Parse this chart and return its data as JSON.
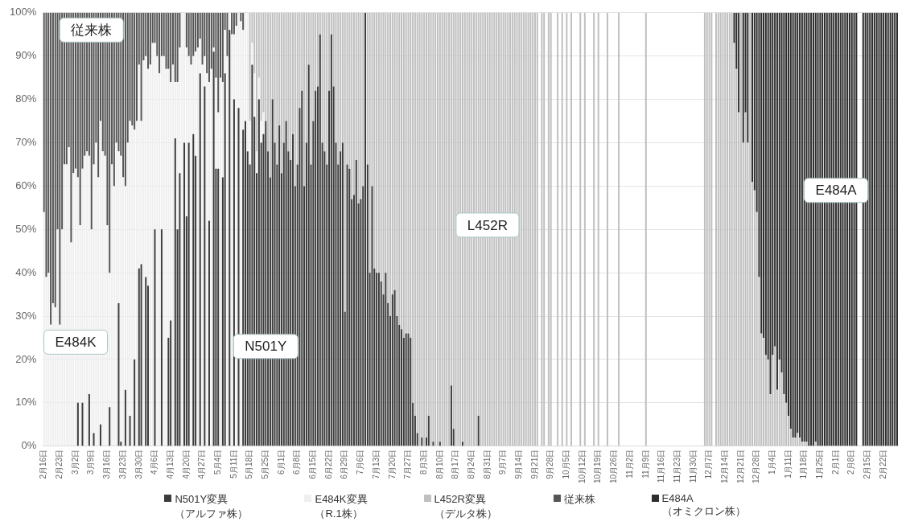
{
  "chart_data": {
    "type": "bar",
    "stacked": true,
    "categories": [
      "2月16日",
      null,
      null,
      null,
      null,
      null,
      null,
      "2月23日",
      null,
      null,
      null,
      null,
      null,
      null,
      "3月2日",
      null,
      null,
      null,
      null,
      null,
      null,
      "3月9日",
      null,
      null,
      null,
      null,
      null,
      null,
      "3月16日",
      null,
      null,
      null,
      null,
      null,
      null,
      "3月23日",
      null,
      null,
      null,
      null,
      null,
      null,
      "3月30日",
      null,
      null,
      null,
      null,
      null,
      null,
      "4月6日",
      null,
      null,
      null,
      null,
      null,
      null,
      "4月13日",
      null,
      null,
      null,
      null,
      null,
      null,
      "4月20日",
      null,
      null,
      null,
      null,
      null,
      null,
      "4月27日",
      null,
      null,
      null,
      null,
      null,
      null,
      "5月4日",
      null,
      null,
      null,
      null,
      null,
      null,
      "5月11日",
      null,
      null,
      null,
      null,
      null,
      null,
      "5月18日",
      null,
      null,
      null,
      null,
      null,
      null,
      "5月25日",
      null,
      null,
      null,
      null,
      null,
      null,
      "6月1日",
      null,
      null,
      null,
      null,
      null,
      null,
      "6月8日",
      null,
      null,
      null,
      null,
      null,
      null,
      "6月15日",
      null,
      null,
      null,
      null,
      null,
      null,
      "6月22日",
      null,
      null,
      null,
      null,
      null,
      null,
      "6月29日",
      null,
      null,
      null,
      null,
      null,
      null,
      "7月6日",
      null,
      null,
      null,
      null,
      null,
      null,
      "7月13日",
      null,
      null,
      null,
      null,
      null,
      null,
      "7月20日",
      null,
      null,
      null,
      null,
      null,
      null,
      "7月27日",
      null,
      null,
      null,
      null,
      null,
      null,
      "8月3日",
      null,
      null,
      null,
      null,
      null,
      null,
      "8月10日",
      null,
      null,
      null,
      null,
      null,
      null,
      "8月17日",
      null,
      null,
      null,
      null,
      null,
      null,
      "8月24日",
      null,
      null,
      null,
      null,
      null,
      null,
      "8月31日",
      null,
      null,
      null,
      null,
      null,
      null,
      "9月7日",
      null,
      null,
      null,
      null,
      null,
      null,
      "9月14日",
      null,
      null,
      null,
      null,
      null,
      null,
      "9月21日",
      null,
      null,
      null,
      null,
      null,
      null,
      "9月28日",
      null,
      null,
      null,
      null,
      null,
      null,
      "10月5日",
      null,
      null,
      null,
      null,
      null,
      null,
      "10月12日",
      null,
      null,
      null,
      null,
      null,
      null,
      "10月19日",
      null,
      null,
      null,
      null,
      null,
      null,
      "10月26日",
      null,
      null,
      null,
      null,
      null,
      null,
      "11月2日",
      null,
      null,
      null,
      null,
      null,
      null,
      "11月9日",
      null,
      null,
      null,
      null,
      null,
      null,
      "11月16日",
      null,
      null,
      null,
      null,
      null,
      null,
      "11月23日",
      null,
      null,
      null,
      null,
      null,
      null,
      "11月30日",
      null,
      null,
      null,
      null,
      null,
      null,
      "12月7日",
      null,
      null,
      null,
      null,
      null,
      null,
      "12月14日",
      null,
      null,
      null,
      null,
      null,
      null,
      "12月21日",
      null,
      null,
      null,
      null,
      null,
      null,
      "12月28日",
      null,
      null,
      null,
      null,
      null,
      null,
      "1月4日",
      null,
      null,
      null,
      null,
      null,
      null,
      "1月11日",
      null,
      null,
      null,
      null,
      null,
      null,
      "1月18日",
      null,
      null,
      null,
      null,
      null,
      null,
      "1月25日",
      null,
      null,
      null,
      null,
      null,
      null,
      "2月1日",
      null,
      null,
      null,
      null,
      null,
      null,
      "2月8日",
      null,
      null,
      null,
      null,
      null,
      null,
      "2月15日",
      null,
      null,
      null,
      null,
      null,
      null,
      "2月22日",
      null,
      null,
      null,
      null,
      null,
      null
    ],
    "series": [
      {
        "name": "N501Y変異（アルファ株）",
        "color": "#3c3c3c",
        "values": [
          0,
          0,
          0,
          0,
          0,
          0,
          0,
          0,
          0,
          0,
          0,
          0,
          0,
          0,
          0,
          10,
          0,
          10,
          0,
          0,
          12,
          0,
          3,
          0,
          0,
          5,
          0,
          0,
          0,
          9,
          0,
          0,
          0,
          33,
          1,
          0,
          13,
          0,
          7,
          0,
          20,
          0,
          41,
          42,
          0,
          39,
          37,
          0,
          0,
          50,
          0,
          0,
          50,
          0,
          0,
          25,
          29,
          0,
          71,
          50,
          63,
          0,
          70,
          53,
          70,
          0,
          72,
          67,
          0,
          86,
          0,
          83,
          0,
          52,
          0,
          91,
          64,
          64,
          0,
          62,
          86,
          0,
          96,
          0,
          80,
          0,
          78,
          0,
          73,
          75,
          68,
          65,
          88,
          76,
          63,
          80,
          70,
          72,
          75,
          68,
          62,
          80,
          70,
          65,
          74,
          63,
          70,
          75,
          68,
          66,
          72,
          60,
          65,
          78,
          82,
          60,
          70,
          88,
          65,
          75,
          82,
          83,
          95,
          70,
          68,
          65,
          82,
          95,
          83,
          70,
          65,
          68,
          70,
          31,
          65,
          64,
          57,
          58,
          66,
          56,
          57,
          60,
          100,
          65,
          40,
          60,
          41,
          40,
          40,
          38,
          35,
          40,
          33,
          30,
          35,
          36,
          30,
          28,
          27,
          25,
          26,
          26,
          25,
          10,
          7,
          3,
          0,
          2,
          0,
          2,
          7,
          0,
          1,
          0,
          0,
          1,
          0,
          0,
          0,
          0,
          14,
          4,
          0,
          0,
          0,
          1,
          0,
          0,
          0,
          0,
          0,
          0,
          7,
          0,
          0,
          0,
          0,
          0,
          0,
          0,
          0,
          0,
          0,
          0,
          0,
          0,
          0,
          0,
          0,
          0,
          0,
          0,
          0,
          0,
          0,
          0,
          0,
          0,
          0,
          null,
          0,
          0,
          null,
          0,
          0,
          null,
          null,
          0,
          null,
          0,
          null,
          0,
          null,
          0,
          null,
          null,
          null,
          0,
          null,
          0,
          null,
          null,
          null,
          0,
          null,
          0,
          null,
          null,
          null,
          0,
          null,
          null,
          null,
          null,
          0,
          null,
          null,
          null,
          null,
          null,
          null,
          null,
          null,
          null,
          null,
          null,
          0,
          null,
          null,
          null,
          null,
          null,
          null,
          null,
          null,
          null,
          null,
          null,
          null,
          null,
          null,
          null,
          null,
          null,
          null,
          null,
          null,
          null,
          null,
          null,
          null,
          null,
          0,
          0,
          0,
          0,
          null,
          0,
          0,
          0,
          0,
          0,
          0,
          0,
          0,
          0,
          0,
          0,
          0,
          0,
          0,
          0,
          0,
          0,
          0,
          0,
          0,
          0,
          0,
          0,
          0,
          0,
          0,
          0,
          0,
          0,
          0,
          0,
          0,
          0,
          0,
          0,
          0,
          0,
          0,
          0,
          0,
          0,
          0,
          0,
          0,
          0,
          0,
          0,
          0,
          0,
          0,
          0,
          0,
          0,
          0,
          0,
          0,
          0,
          0,
          0,
          0,
          0,
          0,
          0,
          null,
          null,
          0,
          0,
          0,
          0,
          0,
          0,
          0,
          0,
          0,
          0,
          0,
          0,
          0,
          0,
          0,
          0
        ]
      },
      {
        "name": "E484K変異（R.1株）",
        "color": "#efefef",
        "values": [
          54,
          39,
          40,
          28,
          33,
          32,
          50,
          28,
          50,
          65,
          65,
          69,
          47,
          63,
          64,
          52,
          51,
          54,
          67,
          68,
          55,
          50,
          62,
          70,
          62,
          70,
          68,
          67,
          51,
          31,
          65,
          60,
          70,
          35,
          66,
          62,
          47,
          70,
          68,
          74,
          53,
          75,
          47,
          33,
          89,
          51,
          50,
          88,
          93,
          43,
          90,
          86,
          40,
          90,
          87,
          62,
          55,
          88,
          13,
          34,
          29,
          100,
          30,
          39,
          20,
          88,
          18,
          24,
          92,
          8,
          88,
          7,
          86,
          32,
          87,
          1,
          21,
          13,
          85,
          22,
          10,
          90,
          4,
          95,
          15,
          97,
          22,
          98,
          23,
          25,
          32,
          10,
          5,
          10,
          5,
          5,
          5,
          5,
          0,
          0,
          0,
          0,
          0,
          0,
          0,
          0,
          0,
          0,
          0,
          0,
          0,
          0,
          0,
          0,
          0,
          0,
          0,
          0,
          0,
          0,
          0,
          0,
          0,
          0,
          0,
          0,
          0,
          0,
          0,
          0,
          0,
          0,
          0,
          0,
          0,
          0,
          0,
          0,
          0,
          0,
          0,
          0,
          0,
          0,
          0,
          0,
          0,
          0,
          0,
          0,
          0,
          0,
          0,
          0,
          0,
          0,
          0,
          0,
          0,
          0,
          0,
          0,
          0,
          0,
          0,
          0,
          0,
          0,
          0,
          0,
          0,
          0,
          0,
          0,
          0,
          0,
          0,
          0,
          0,
          0,
          0,
          0,
          0,
          0,
          0,
          0,
          0,
          0,
          0,
          0,
          0,
          0,
          0,
          0,
          0,
          0,
          0,
          0,
          0,
          0,
          0,
          0,
          0,
          0,
          0,
          0,
          0,
          0,
          0,
          0,
          0,
          0,
          0,
          0,
          0,
          0,
          0,
          0,
          0,
          null,
          0,
          0,
          null,
          0,
          0,
          null,
          null,
          0,
          null,
          0,
          null,
          0,
          null,
          0,
          null,
          null,
          null,
          0,
          null,
          0,
          null,
          null,
          null,
          0,
          null,
          0,
          null,
          null,
          null,
          0,
          null,
          null,
          null,
          null,
          0,
          null,
          null,
          null,
          null,
          null,
          null,
          null,
          null,
          null,
          null,
          null,
          0,
          null,
          null,
          null,
          null,
          null,
          null,
          null,
          null,
          null,
          null,
          null,
          null,
          null,
          null,
          null,
          null,
          null,
          null,
          null,
          null,
          null,
          null,
          null,
          null,
          null,
          0,
          0,
          0,
          0,
          null,
          0,
          0,
          0,
          0,
          0,
          0,
          0,
          0,
          0,
          0,
          0,
          0,
          0,
          0,
          0,
          0,
          0,
          0,
          0,
          0,
          0,
          0,
          0,
          0,
          0,
          0,
          0,
          0,
          0,
          0,
          0,
          0,
          0,
          0,
          0,
          0,
          0,
          0,
          0,
          0,
          0,
          0,
          0,
          0,
          0,
          0,
          0,
          0,
          0,
          0,
          0,
          0,
          0,
          0,
          0,
          0,
          0,
          0,
          0,
          0,
          0,
          0,
          0,
          null,
          null,
          0,
          0,
          0,
          0,
          0,
          0,
          0,
          0,
          0,
          0,
          0,
          0,
          0,
          0,
          0,
          0
        ]
      },
      {
        "name": "L452R変異（デルタ株）",
        "color": "#c0c0c0",
        "values": [
          0,
          0,
          0,
          0,
          0,
          0,
          0,
          0,
          0,
          0,
          0,
          0,
          0,
          0,
          0,
          0,
          0,
          0,
          0,
          0,
          0,
          0,
          0,
          0,
          0,
          0,
          0,
          0,
          0,
          0,
          0,
          0,
          0,
          0,
          0,
          0,
          0,
          0,
          0,
          0,
          0,
          0,
          0,
          0,
          0,
          0,
          0,
          0,
          0,
          0,
          0,
          0,
          0,
          0,
          0,
          0,
          0,
          0,
          0,
          0,
          0,
          0,
          0,
          0,
          0,
          0,
          0,
          0,
          0,
          0,
          0,
          0,
          0,
          0,
          0,
          0,
          0,
          0,
          0,
          0,
          0,
          0,
          0,
          0,
          0,
          0,
          0,
          0,
          0,
          0,
          0,
          25,
          7,
          14,
          32,
          15,
          25,
          23,
          25,
          32,
          38,
          20,
          30,
          35,
          26,
          37,
          30,
          25,
          32,
          34,
          28,
          40,
          35,
          22,
          18,
          40,
          30,
          12,
          35,
          25,
          18,
          17,
          5,
          30,
          32,
          35,
          18,
          5,
          17,
          30,
          35,
          32,
          30,
          69,
          35,
          36,
          43,
          42,
          34,
          44,
          43,
          40,
          0,
          35,
          60,
          40,
          59,
          60,
          60,
          62,
          65,
          60,
          67,
          70,
          65,
          64,
          70,
          72,
          73,
          75,
          74,
          74,
          75,
          90,
          93,
          97,
          100,
          98,
          100,
          98,
          93,
          100,
          99,
          100,
          100,
          99,
          100,
          100,
          100,
          100,
          86,
          96,
          100,
          100,
          100,
          99,
          100,
          100,
          100,
          100,
          100,
          100,
          93,
          100,
          100,
          100,
          100,
          100,
          100,
          100,
          100,
          100,
          100,
          100,
          100,
          100,
          100,
          100,
          100,
          100,
          100,
          100,
          100,
          100,
          100,
          100,
          100,
          100,
          100,
          null,
          100,
          100,
          null,
          100,
          100,
          null,
          null,
          100,
          null,
          100,
          null,
          100,
          null,
          100,
          null,
          null,
          null,
          100,
          null,
          100,
          null,
          null,
          null,
          100,
          null,
          100,
          null,
          null,
          null,
          100,
          null,
          null,
          null,
          null,
          100,
          null,
          null,
          null,
          null,
          null,
          null,
          null,
          null,
          null,
          null,
          null,
          100,
          null,
          null,
          null,
          null,
          null,
          null,
          null,
          null,
          null,
          null,
          null,
          null,
          null,
          null,
          null,
          null,
          null,
          null,
          null,
          null,
          null,
          null,
          null,
          null,
          null,
          100,
          100,
          100,
          100,
          null,
          100,
          100,
          100,
          100,
          100,
          100,
          100,
          100,
          93,
          87,
          77,
          100,
          70,
          77,
          70,
          100,
          61,
          59,
          54,
          39,
          26,
          25,
          21,
          20,
          12,
          21,
          23,
          13,
          20,
          17,
          12,
          10,
          7,
          4,
          2,
          2,
          3,
          2,
          1,
          1,
          1,
          0,
          0,
          0,
          1,
          0,
          0,
          0,
          0,
          0,
          0,
          0,
          0,
          0,
          0,
          0,
          0,
          0,
          0,
          0,
          0,
          0,
          0,
          null,
          null,
          0,
          0,
          0,
          0,
          0,
          0,
          0,
          0,
          0,
          0,
          0,
          0,
          0,
          0,
          0,
          0
        ]
      },
      {
        "name": "従来株",
        "color": "#555555",
        "values": [
          46,
          61,
          60,
          72,
          67,
          68,
          50,
          72,
          50,
          35,
          35,
          31,
          53,
          37,
          36,
          38,
          49,
          36,
          33,
          32,
          33,
          50,
          35,
          30,
          38,
          25,
          32,
          33,
          49,
          60,
          35,
          40,
          30,
          32,
          33,
          38,
          40,
          30,
          25,
          26,
          27,
          25,
          12,
          25,
          11,
          10,
          13,
          12,
          7,
          7,
          10,
          14,
          10,
          10,
          13,
          13,
          16,
          12,
          16,
          16,
          8,
          0,
          0,
          8,
          10,
          12,
          10,
          9,
          8,
          6,
          12,
          10,
          14,
          16,
          13,
          8,
          15,
          23,
          15,
          16,
          4,
          10,
          0,
          5,
          5,
          3,
          0,
          2,
          4,
          0,
          0,
          0,
          0,
          0,
          0,
          0,
          0,
          0,
          0,
          0,
          0,
          0,
          0,
          0,
          0,
          0,
          0,
          0,
          0,
          0,
          0,
          0,
          0,
          0,
          0,
          0,
          0,
          0,
          0,
          0,
          0,
          0,
          0,
          0,
          0,
          0,
          0,
          0,
          0,
          0,
          0,
          0,
          0,
          0,
          0,
          0,
          0,
          0,
          0,
          0,
          0,
          0,
          0,
          0,
          0,
          0,
          0,
          0,
          0,
          0,
          0,
          0,
          0,
          0,
          0,
          0,
          0,
          0,
          0,
          0,
          0,
          0,
          0,
          0,
          0,
          0,
          0,
          0,
          0,
          0,
          0,
          0,
          0,
          0,
          0,
          0,
          0,
          0,
          0,
          0,
          0,
          0,
          0,
          0,
          0,
          0,
          0,
          0,
          0,
          0,
          0,
          0,
          0,
          0,
          0,
          0,
          0,
          0,
          0,
          0,
          0,
          0,
          0,
          0,
          0,
          0,
          0,
          0,
          0,
          0,
          0,
          0,
          0,
          0,
          0,
          0,
          0,
          0,
          0,
          null,
          0,
          0,
          null,
          0,
          0,
          null,
          null,
          0,
          null,
          0,
          null,
          0,
          null,
          0,
          null,
          null,
          null,
          0,
          null,
          0,
          null,
          null,
          null,
          0,
          null,
          0,
          null,
          null,
          null,
          0,
          null,
          null,
          null,
          null,
          0,
          null,
          null,
          null,
          null,
          null,
          null,
          null,
          null,
          null,
          null,
          null,
          0,
          null,
          null,
          null,
          null,
          null,
          null,
          null,
          null,
          null,
          null,
          null,
          null,
          null,
          null,
          null,
          null,
          null,
          null,
          null,
          null,
          null,
          null,
          null,
          null,
          null,
          0,
          0,
          0,
          0,
          null,
          0,
          0,
          0,
          0,
          0,
          0,
          0,
          0,
          0,
          0,
          0,
          0,
          0,
          0,
          0,
          0,
          0,
          0,
          0,
          0,
          0,
          0,
          0,
          0,
          0,
          0,
          0,
          0,
          0,
          0,
          0,
          0,
          0,
          0,
          0,
          0,
          0,
          0,
          0,
          0,
          0,
          0,
          0,
          0,
          0,
          0,
          0,
          0,
          0,
          0,
          0,
          0,
          0,
          0,
          0,
          0,
          0,
          0,
          0,
          0,
          0,
          0,
          0,
          null,
          null,
          0,
          0,
          0,
          0,
          0,
          0,
          0,
          0,
          0,
          0,
          0,
          0,
          0,
          0,
          0,
          0
        ]
      },
      {
        "name": "E484A（オミクロン株）",
        "color": "#2e2e2e",
        "values": [
          0,
          0,
          0,
          0,
          0,
          0,
          0,
          0,
          0,
          0,
          0,
          0,
          0,
          0,
          0,
          0,
          0,
          0,
          0,
          0,
          0,
          0,
          0,
          0,
          0,
          0,
          0,
          0,
          0,
          0,
          0,
          0,
          0,
          0,
          0,
          0,
          0,
          0,
          0,
          0,
          0,
          0,
          0,
          0,
          0,
          0,
          0,
          0,
          0,
          0,
          0,
          0,
          0,
          0,
          0,
          0,
          0,
          0,
          0,
          0,
          0,
          0,
          0,
          0,
          0,
          0,
          0,
          0,
          0,
          0,
          0,
          0,
          0,
          0,
          0,
          0,
          0,
          0,
          0,
          0,
          0,
          0,
          0,
          0,
          0,
          0,
          0,
          0,
          0,
          0,
          0,
          0,
          0,
          0,
          0,
          0,
          0,
          0,
          0,
          0,
          0,
          0,
          0,
          0,
          0,
          0,
          0,
          0,
          0,
          0,
          0,
          0,
          0,
          0,
          0,
          0,
          0,
          0,
          0,
          0,
          0,
          0,
          0,
          0,
          0,
          0,
          0,
          0,
          0,
          0,
          0,
          0,
          0,
          0,
          0,
          0,
          0,
          0,
          0,
          0,
          0,
          0,
          0,
          0,
          0,
          0,
          0,
          0,
          0,
          0,
          0,
          0,
          0,
          0,
          0,
          0,
          0,
          0,
          0,
          0,
          0,
          0,
          0,
          0,
          0,
          0,
          0,
          0,
          0,
          0,
          0,
          0,
          0,
          0,
          0,
          0,
          0,
          0,
          0,
          0,
          0,
          0,
          0,
          0,
          0,
          0,
          0,
          0,
          0,
          0,
          0,
          0,
          0,
          0,
          0,
          0,
          0,
          0,
          0,
          0,
          0,
          0,
          0,
          0,
          0,
          0,
          0,
          0,
          0,
          0,
          0,
          0,
          0,
          0,
          0,
          0,
          0,
          0,
          0,
          null,
          0,
          0,
          null,
          0,
          0,
          null,
          null,
          0,
          null,
          0,
          null,
          0,
          null,
          0,
          null,
          null,
          null,
          0,
          null,
          0,
          null,
          null,
          null,
          0,
          null,
          0,
          null,
          null,
          null,
          0,
          null,
          null,
          null,
          null,
          0,
          null,
          null,
          null,
          null,
          null,
          null,
          null,
          null,
          null,
          null,
          null,
          0,
          null,
          null,
          null,
          null,
          null,
          null,
          null,
          null,
          null,
          null,
          null,
          null,
          null,
          null,
          null,
          null,
          null,
          null,
          null,
          null,
          null,
          null,
          null,
          null,
          null,
          0,
          0,
          0,
          0,
          null,
          0,
          0,
          0,
          0,
          0,
          0,
          0,
          0,
          7,
          13,
          23,
          0,
          30,
          23,
          30,
          0,
          39,
          41,
          46,
          61,
          74,
          75,
          79,
          80,
          88,
          79,
          77,
          87,
          80,
          83,
          88,
          90,
          93,
          96,
          98,
          98,
          97,
          98,
          99,
          99,
          99,
          100,
          100,
          100,
          99,
          100,
          100,
          100,
          100,
          100,
          100,
          100,
          100,
          100,
          100,
          100,
          100,
          100,
          100,
          100,
          100,
          100,
          100,
          null,
          null,
          100,
          100,
          100,
          100,
          100,
          100,
          100,
          100,
          100,
          100,
          100,
          100,
          100,
          100,
          100,
          100
        ]
      }
    ],
    "ylim": [
      0,
      100
    ],
    "yticks": [
      {
        "value": 0,
        "label": "0%"
      },
      {
        "value": 10,
        "label": "10%"
      },
      {
        "value": 20,
        "label": "20%"
      },
      {
        "value": 30,
        "label": "30%"
      },
      {
        "value": 40,
        "label": "40%"
      },
      {
        "value": 50,
        "label": "50%"
      },
      {
        "value": 60,
        "label": "60%"
      },
      {
        "value": 70,
        "label": "70%"
      },
      {
        "value": 80,
        "label": "80%"
      },
      {
        "value": 90,
        "label": "90%"
      },
      {
        "value": 100,
        "label": "100%"
      }
    ],
    "grid": "y",
    "legend": "bottom",
    "annotations": [
      {
        "text": "従来株",
        "x": "3月9日",
        "y": 96
      },
      {
        "text": "E484K",
        "x": "3月2日",
        "y": 24
      },
      {
        "text": "N501Y",
        "x": "5月25日",
        "y": 23
      },
      {
        "text": "L452R",
        "x": "8月31日",
        "y": 51
      },
      {
        "text": "E484A",
        "x": "2月1日",
        "y": 59
      }
    ]
  }
}
